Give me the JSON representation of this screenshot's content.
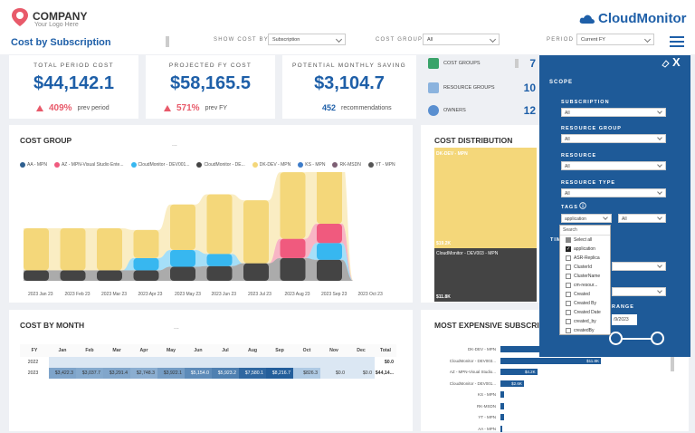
{
  "brand": {
    "name": "COMPANY",
    "tagline": "Your Logo Here",
    "product": "CloudMonitor"
  },
  "page": {
    "title": "Cost by Subscription"
  },
  "filters": [
    {
      "label": "SHOW COST BY",
      "value": "Subscription"
    },
    {
      "label": "COST GROUP",
      "value": "All"
    },
    {
      "label": "PERIOD",
      "value": "Current FY"
    }
  ],
  "kpis": [
    {
      "label": "TOTAL PERIOD COST",
      "value": "$44,142.1",
      "delta": "409%",
      "delta_note": "prev period"
    },
    {
      "label": "PROJECTED FY COST",
      "value": "$58,165.5",
      "delta": "571%",
      "delta_note": "prev FY"
    },
    {
      "label": "POTENTIAL MONTHLY SAVING",
      "value": "$3,104.7",
      "count": "452",
      "count_note": "recommendations"
    }
  ],
  "mini_stats": [
    {
      "label": "COST GROUPS",
      "value": "7"
    },
    {
      "label": "RESOURCE GROUPS",
      "value": "10"
    },
    {
      "label": "OWNERS",
      "value": "12"
    }
  ],
  "cost_group": {
    "title": "COST GROUP",
    "more": "...",
    "legend": [
      {
        "name": "AA - MPN",
        "color": "#2e5f8f"
      },
      {
        "name": "AZ - MPN-Visual Studio Ente...",
        "color": "#f05a7e"
      },
      {
        "name": "CloudMonitor - DEV001...",
        "color": "#37b7f0"
      },
      {
        "name": "CloudMonitor - DE...",
        "color": "#444444"
      },
      {
        "name": "DK-DEV - MPN",
        "color": "#f4d77a"
      },
      {
        "name": "KS - MPN",
        "color": "#3d7cc9"
      },
      {
        "name": "RK-MSDN",
        "color": "#7d5f74"
      },
      {
        "name": "YT - MPN",
        "color": "#555555"
      }
    ],
    "x_labels": [
      "2023 Jan 23",
      "2023 Feb 23",
      "2023 Mar 23",
      "2023 Apr 23",
      "2023 May 23",
      "2023 Jun 23",
      "2023 Jul 23",
      "2023 Aug 23",
      "2023 Sep 23",
      "2023 Oct 23"
    ]
  },
  "chart_data": {
    "type": "area",
    "title": "COST GROUP",
    "categories": [
      "2023 Jan 23",
      "2023 Feb 23",
      "2023 Mar 23",
      "2023 Apr 23",
      "2023 May 23",
      "2023 Jun 23",
      "2023 Jul 23",
      "2023 Aug 23",
      "2023 Sep 23",
      "2023 Oct 23"
    ],
    "series": [
      {
        "name": "DK-DEV - MPN",
        "values": [
          1200,
          1200,
          1200,
          800,
          1300,
          1700,
          1800,
          1900,
          1900,
          0
        ]
      },
      {
        "name": "AZ - MPN-Visual Studio Ente...",
        "values": [
          0,
          0,
          0,
          0,
          0,
          0,
          0,
          550,
          550,
          0
        ]
      },
      {
        "name": "CloudMonitor - DEV001...",
        "values": [
          0,
          0,
          0,
          350,
          480,
          350,
          0,
          0,
          480,
          0
        ]
      },
      {
        "name": "CloudMonitor - DE...",
        "values": [
          300,
          300,
          300,
          300,
          400,
          420,
          500,
          650,
          600,
          0
        ]
      }
    ]
  },
  "cost_distribution": {
    "title": "COST DISTRIBUTION",
    "blocks": [
      {
        "label": "DK-DEV - MPN",
        "value": "$19.2K",
        "color": "#f4d77a"
      },
      {
        "label": "CloudMonitor - DEV003 - MPN",
        "value": "$11.8K",
        "color": "#444444"
      }
    ]
  },
  "cost_by_month": {
    "title": "COST BY MONTH",
    "more": "...",
    "headers": [
      "FY",
      "Jan",
      "Feb",
      "Mar",
      "Apr",
      "May",
      "Jun",
      "Jul",
      "Aug",
      "Sep",
      "Oct",
      "Nov",
      "Dec",
      "Total"
    ],
    "rows": [
      [
        "2022",
        "",
        "",
        "",
        "",
        "",
        "",
        "",
        "",
        "",
        "",
        "",
        "",
        "$0.0"
      ],
      [
        "2023",
        "$3,422.3",
        "$3,037.7",
        "$3,291.4",
        "$2,748.3",
        "$3,922.1",
        "$5,154.0",
        "$5,923.2",
        "$7,580.1",
        "$8,216.7",
        "$826.3",
        "$0.0",
        "$0.0",
        "$44,14..."
      ]
    ]
  },
  "most_expensive": {
    "title": "MOST EXPENSIVE SUBSCRIPTIONS",
    "items": [
      {
        "name": "DK-DEV - MPN",
        "value": "",
        "share": 0.98
      },
      {
        "name": "CloudMonitor - DEV003...",
        "value": "$11.8K",
        "share": 0.6
      },
      {
        "name": "AZ - MPN-Visual Studio...",
        "value": "$4.2K",
        "share": 0.22
      },
      {
        "name": "CloudMonitor - DEV001...",
        "value": "$2.6K",
        "share": 0.14
      },
      {
        "name": "KS - MPN",
        "value": "",
        "share": 0.02
      },
      {
        "name": "RK-MSDN",
        "value": "",
        "share": 0.02
      },
      {
        "name": "YT - MPN",
        "value": "",
        "share": 0.02
      },
      {
        "name": "AA - MPN",
        "value": "",
        "share": 0.01
      }
    ]
  },
  "scope_panel": {
    "title": "SCOPE",
    "close": "X",
    "fields": [
      {
        "label": "SUBSCRIPTION",
        "value": "All"
      },
      {
        "label": "RESOURCE GROUP",
        "value": "All"
      },
      {
        "label": "RESOURCE",
        "value": "All"
      },
      {
        "label": "RESOURCE TYPE",
        "value": "All"
      }
    ],
    "tags_label": "TAGS",
    "tag_key": "application",
    "tag_value": "All",
    "time_label": "TIM",
    "range_label": "RANGE",
    "date_value": "/9/2023",
    "dropdown": {
      "search": "Search",
      "items": [
        {
          "label": "Select all",
          "checked": false,
          "partial": true
        },
        {
          "label": "application",
          "checked": true
        },
        {
          "label": "ASR-Replica",
          "checked": false
        },
        {
          "label": "ClusterId",
          "checked": false
        },
        {
          "label": "ClusterName",
          "checked": false
        },
        {
          "label": "cm-resour...",
          "checked": false
        },
        {
          "label": "Created",
          "checked": false
        },
        {
          "label": "Created By",
          "checked": false
        },
        {
          "label": "Created Date",
          "checked": false
        },
        {
          "label": "created_by",
          "checked": false
        },
        {
          "label": "createdBy",
          "checked": false
        }
      ]
    }
  }
}
